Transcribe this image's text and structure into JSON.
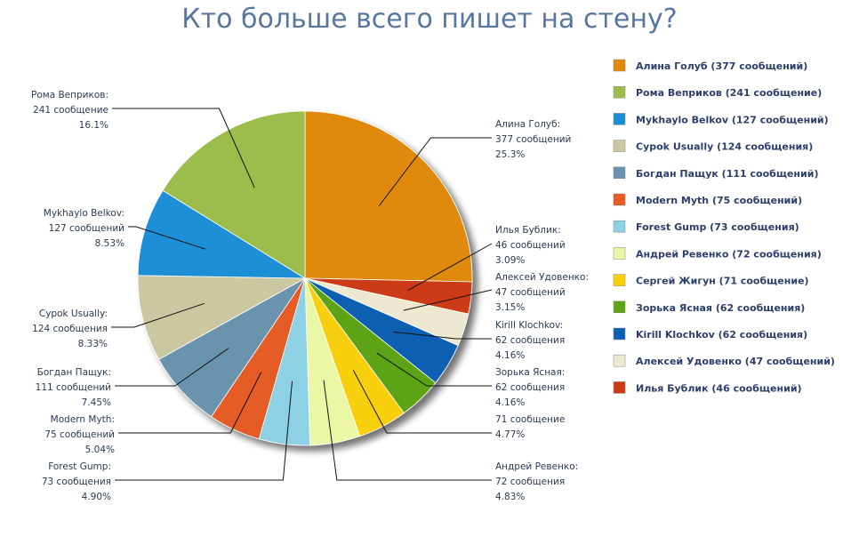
{
  "chart_data": {
    "type": "pie",
    "title": "Кто больше всего пишет на стену?",
    "slices": [
      {
        "name": "Алина Голуб",
        "value": 377,
        "percent": 25.3,
        "color": "#e08a0b",
        "label_lines": [
          "Алина Голуб:",
          "377 сообщений",
          "25.3%"
        ],
        "legend": "Алина Голуб (377 сообщений)"
      },
      {
        "name": "Илья Бублик",
        "value": 46,
        "percent": 3.09,
        "color": "#cc3b14",
        "label_lines": [
          "Илья Бублик:",
          "46 сообщений",
          "3.09%"
        ],
        "legend": "Илья Бублик (46 сообщений)"
      },
      {
        "name": "Алексей Удовенко",
        "value": 47,
        "percent": 3.15,
        "color": "#ede8d0",
        "label_lines": [
          "Алексей Удовенко:",
          "47 сообщений",
          "3.15%"
        ],
        "legend": "Алексей Удовенко (47 сообщений)"
      },
      {
        "name": "Kirill Klochkov",
        "value": 62,
        "percent": 4.16,
        "color": "#0d5fb1",
        "label_lines": [
          "Kirill Klochkov:",
          "62 сообщения",
          "4.16%"
        ],
        "legend": "Kirill Klochkov (62 сообщения)"
      },
      {
        "name": "Зорька Ясная",
        "value": 62,
        "percent": 4.16,
        "color": "#5da313",
        "label_lines": [
          "Зорька Ясная:",
          "62 сообщения",
          "4.16%"
        ],
        "legend": "Зорька Ясная (62 сообщения)"
      },
      {
        "name": "Сергей Жигун",
        "value": 71,
        "percent": 4.77,
        "color": "#f8cf0b",
        "label_lines": [
          "71 сообщение",
          "4.77%"
        ],
        "legend": "Сергей Жигун (71 сообщение)"
      },
      {
        "name": "Андрей Ревенко",
        "value": 72,
        "percent": 4.83,
        "color": "#ecf7a6",
        "label_lines": [
          "Андрей Ревенко:",
          "72 сообщения",
          "4.83%"
        ],
        "legend": "Андрей Ревенко (72 сообщения)"
      },
      {
        "name": "Forest Gump",
        "value": 73,
        "percent": 4.9,
        "color": "#8dd2e4",
        "label_lines": [
          "Forest Gump:",
          "73 сообщения",
          "4.90%"
        ],
        "legend": "Forest Gump (73 сообщения)"
      },
      {
        "name": "Modern Myth",
        "value": 75,
        "percent": 5.04,
        "color": "#e65b26",
        "label_lines": [
          "Modern Myth:",
          "75 сообщений",
          "5.04%"
        ],
        "legend": "Modern Myth (75 сообщений)"
      },
      {
        "name": "Богдан Пащук",
        "value": 111,
        "percent": 7.45,
        "color": "#6b93ad",
        "label_lines": [
          "Богдан Пащук:",
          "111 сообщений",
          "7.45%"
        ],
        "legend": "Богдан Пащук (111 сообщений)"
      },
      {
        "name": "Cypok Usually",
        "value": 124,
        "percent": 8.33,
        "color": "#cac7a1",
        "label_lines": [
          "Cypok Usually:",
          "124 сообщения",
          "8.33%"
        ],
        "legend": "Cypok Usually (124 сообщения)"
      },
      {
        "name": "Mykhaylo Belkov",
        "value": 127,
        "percent": 8.53,
        "color": "#1a8fd6",
        "label_lines": [
          "Mykhaylo Belkov:",
          "127 сообщений",
          "8.53%"
        ],
        "legend": "Mykhaylo Belkov (127 сообщений)"
      },
      {
        "name": "Рома Веприков",
        "value": 241,
        "percent": 16.1,
        "color": "#9cbc4c",
        "label_lines": [
          "Рома Веприков:",
          "241 сообщение",
          "16.1%"
        ],
        "legend": "Рома Веприков (241 сообщение)"
      }
    ],
    "legend_order": [
      0,
      12,
      11,
      10,
      9,
      8,
      7,
      6,
      5,
      4,
      3,
      2,
      1
    ],
    "legend_placement": "right"
  }
}
